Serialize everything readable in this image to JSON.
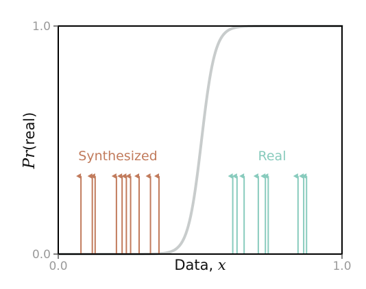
{
  "chart_data": {
    "type": "line",
    "xlabel_text": "Data, ",
    "xlabel_var": "x",
    "ylabel_var": "Pr",
    "ylabel_text": "(real)",
    "xlim": [
      0.0,
      1.0
    ],
    "ylim": [
      0.0,
      1.0
    ],
    "x_ticks": [
      "0.0",
      "1.0"
    ],
    "y_ticks": [
      "0.0",
      "1.0"
    ],
    "grid": false,
    "curve": {
      "name": "Pr(real)",
      "color": "#c8cccc",
      "center": 0.505,
      "steepness": 42
    },
    "groups": [
      {
        "label": "Synthesized",
        "color": "#c17b5c",
        "height": 0.36,
        "x": [
          0.08,
          0.12,
          0.13,
          0.205,
          0.225,
          0.24,
          0.255,
          0.285,
          0.325,
          0.355
        ]
      },
      {
        "label": "Real",
        "color": "#88cbbd",
        "height": 0.36,
        "x": [
          0.615,
          0.63,
          0.655,
          0.705,
          0.73,
          0.74,
          0.845,
          0.865,
          0.875
        ]
      }
    ]
  }
}
